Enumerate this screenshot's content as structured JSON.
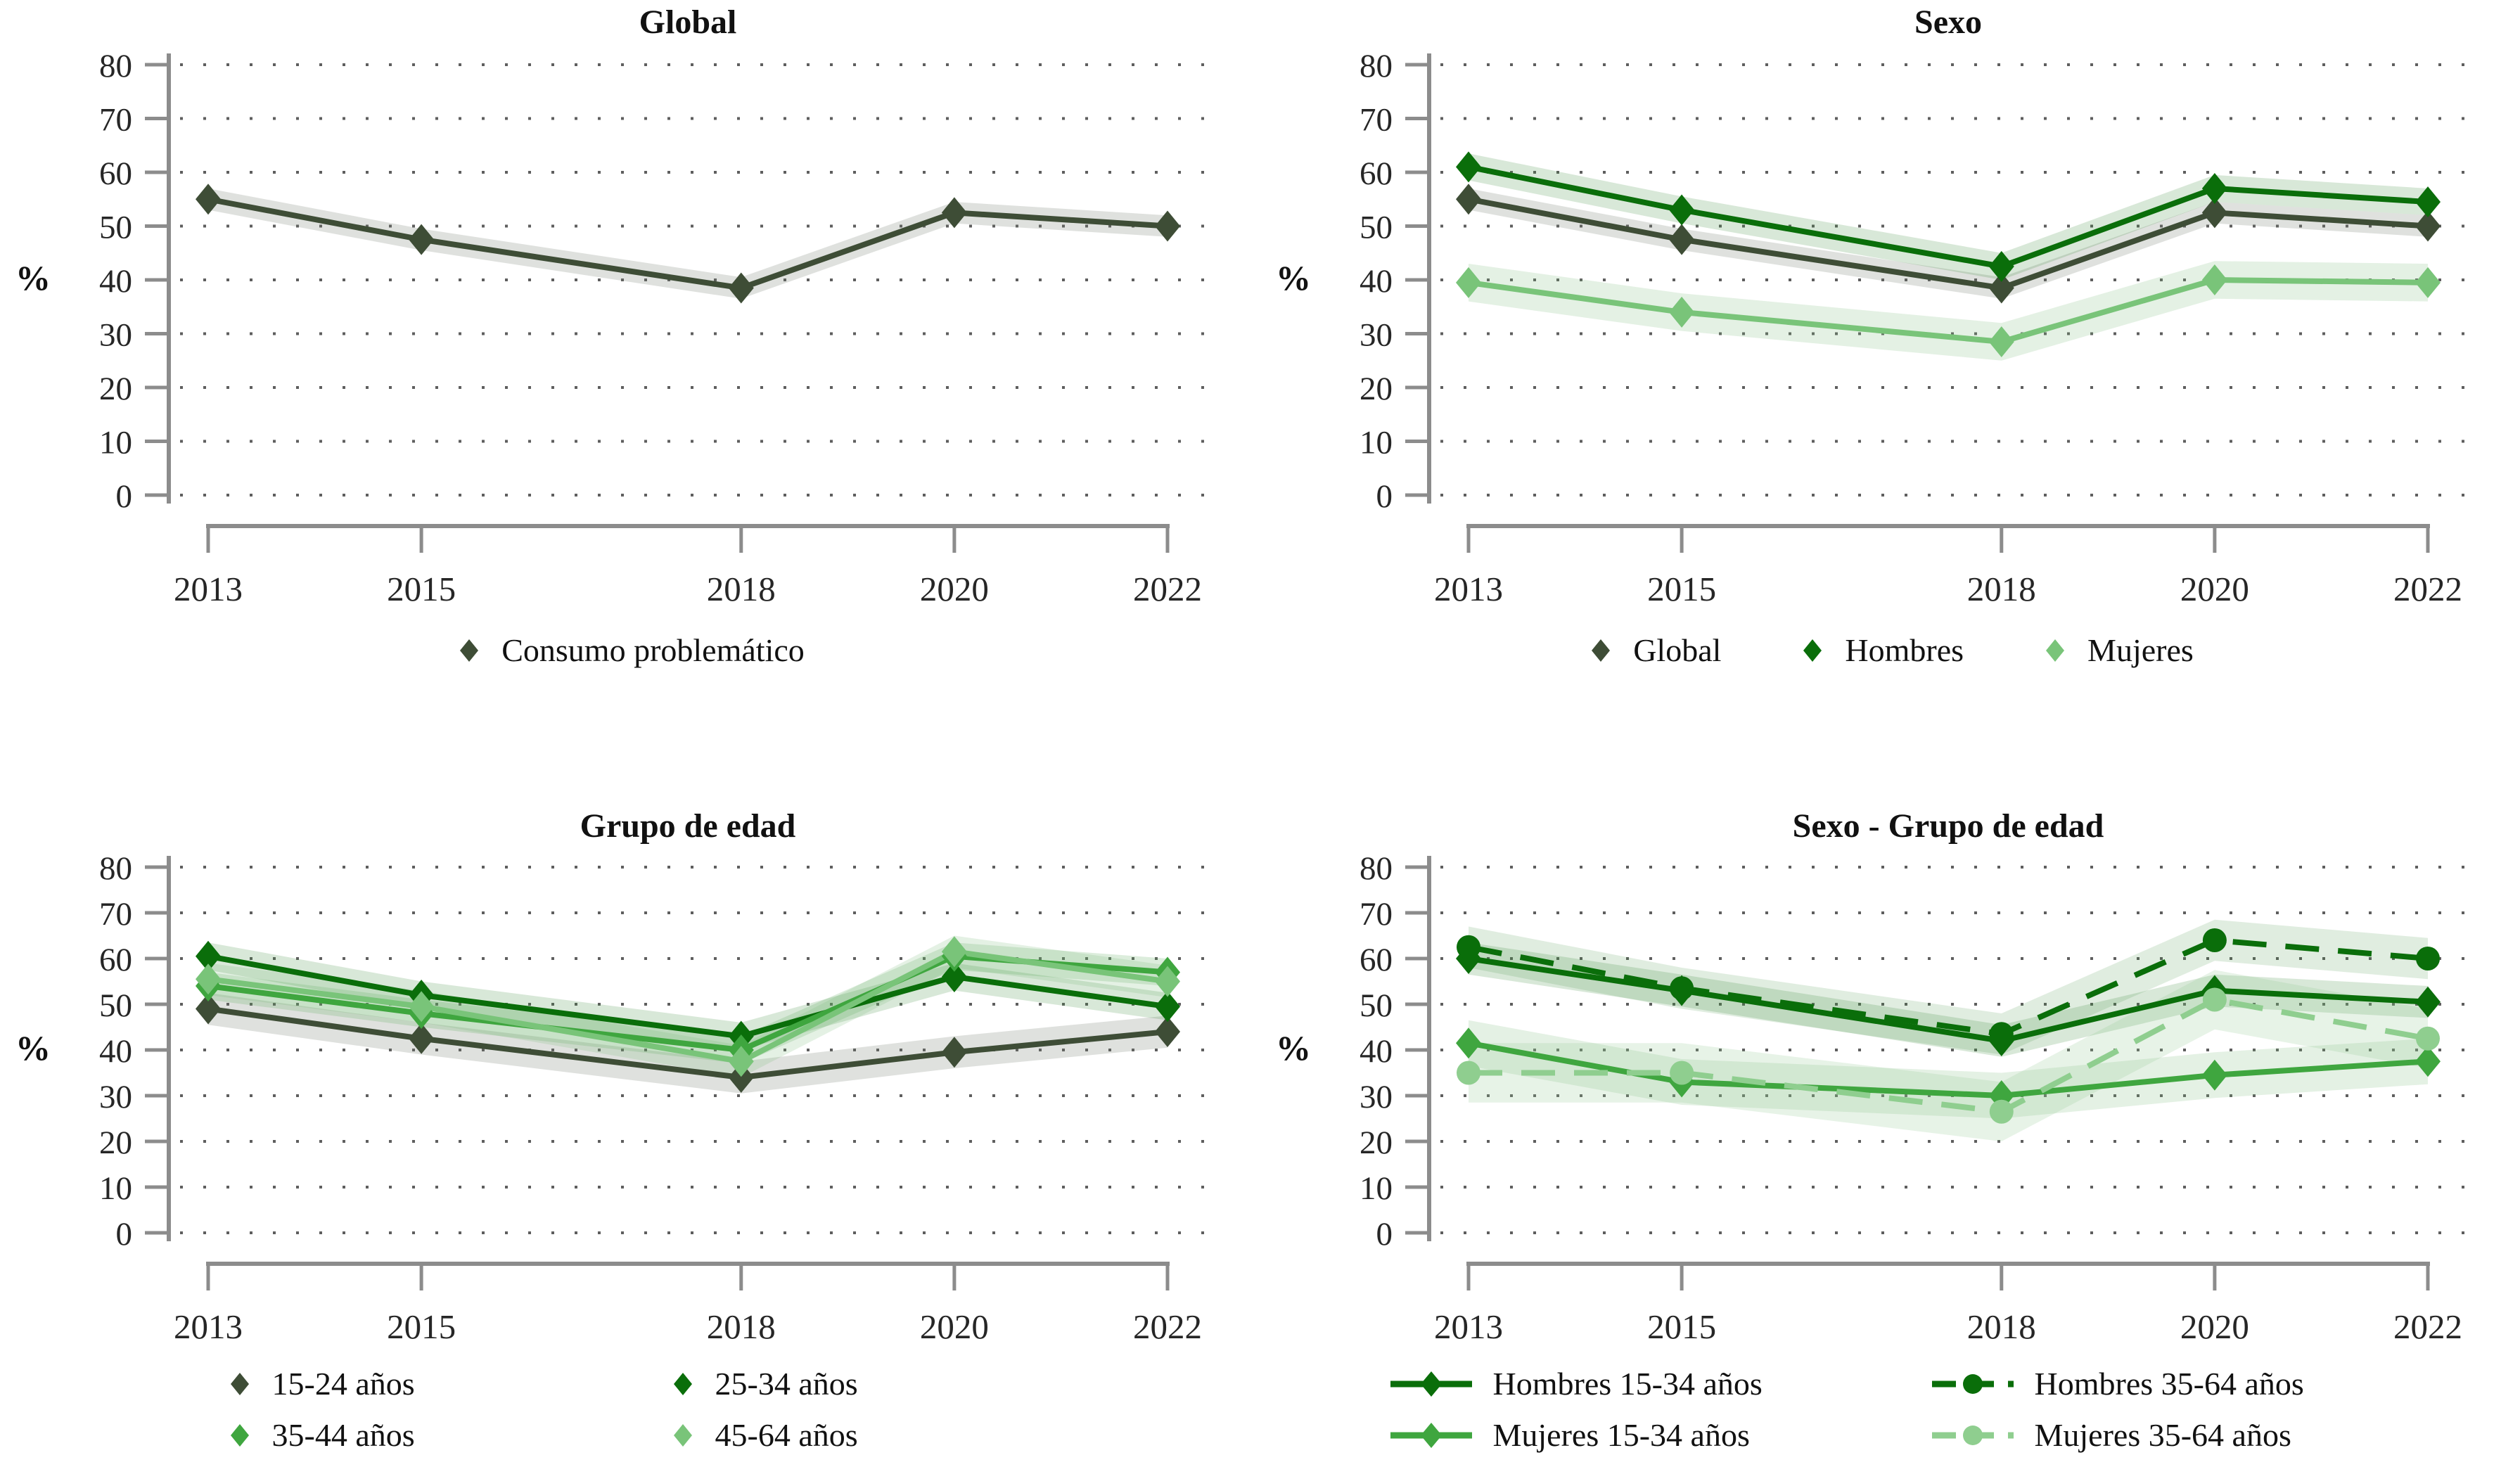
{
  "figure": {
    "background": "#ffffff"
  },
  "axes": {
    "ylabel": "%",
    "y_ticks": [
      0,
      10,
      20,
      30,
      40,
      50,
      60,
      70,
      80
    ],
    "y_range": [
      0,
      80
    ],
    "x_ticks": [
      2013,
      2015,
      2018,
      2020,
      2022
    ],
    "x_range": [
      2013,
      2022
    ],
    "grid": "dotted-horizontal"
  },
  "palette": {
    "darkest_green": "#3e4d36",
    "dark_green": "#0a6e0a",
    "medium_green": "#3fa63f",
    "light_green": "#79c479",
    "lighter_green": "#8fce8f",
    "axis_gray": "#8c8c8c"
  },
  "chart_data": [
    {
      "type": "line",
      "title": "Global",
      "ylabel": "%",
      "ylim": [
        0,
        80
      ],
      "x": [
        2013,
        2015,
        2018,
        2020,
        2022
      ],
      "legend_style": "marker",
      "legend_rows": [
        [
          "Consumo problemático"
        ]
      ],
      "series": [
        {
          "name": "Consumo problemático",
          "color": "#3e4d36",
          "marker": "diamond",
          "dash": "solid",
          "values": [
            55,
            47.5,
            38.5,
            52.5,
            50
          ],
          "band": 2,
          "band_color": "rgba(110,120,105,0.22)"
        }
      ]
    },
    {
      "type": "line",
      "title": "Sexo",
      "ylabel": "%",
      "ylim": [
        0,
        80
      ],
      "x": [
        2013,
        2015,
        2018,
        2020,
        2022
      ],
      "legend_style": "marker",
      "legend_rows": [
        [
          "Global",
          "Hombres",
          "Mujeres"
        ]
      ],
      "series": [
        {
          "name": "Global",
          "color": "#3e4d36",
          "marker": "diamond",
          "dash": "solid",
          "values": [
            55,
            47.5,
            38.5,
            52.5,
            50
          ],
          "band": 2,
          "band_color": "rgba(110,120,105,0.22)"
        },
        {
          "name": "Hombres",
          "color": "#0a6e0a",
          "marker": "diamond",
          "dash": "solid",
          "values": [
            61,
            53,
            42.5,
            57,
            54.5
          ],
          "band": 2.5,
          "band_color": "rgba(60,140,60,0.20)"
        },
        {
          "name": "Mujeres",
          "color": "#79c479",
          "marker": "diamond",
          "dash": "solid",
          "values": [
            39.5,
            34,
            28.5,
            40,
            39.5
          ],
          "band": 3.5,
          "band_color": "rgba(120,185,120,0.20)"
        }
      ]
    },
    {
      "type": "line",
      "title": "Grupo de edad",
      "ylabel": "%",
      "ylim": [
        0,
        80
      ],
      "x": [
        2013,
        2015,
        2018,
        2020,
        2022
      ],
      "legend_style": "marker",
      "legend_rows": [
        [
          "15-24 años",
          "25-34 años"
        ],
        [
          "35-44 años",
          "45-64 años"
        ]
      ],
      "series": [
        {
          "name": "15-24 años",
          "color": "#3e4d36",
          "marker": "diamond",
          "dash": "solid",
          "values": [
            49,
            42.5,
            34,
            39.5,
            44
          ],
          "band": 3.5,
          "band_color": "rgba(110,120,105,0.22)"
        },
        {
          "name": "25-34 años",
          "color": "#0a6e0a",
          "marker": "diamond",
          "dash": "solid",
          "values": [
            60.5,
            52,
            43,
            56,
            49.5
          ],
          "band": 3,
          "band_color": "rgba(60,140,60,0.20)"
        },
        {
          "name": "35-44 años",
          "color": "#3fa63f",
          "marker": "diamond",
          "dash": "solid",
          "values": [
            54,
            48,
            40,
            60.5,
            57
          ],
          "band": 3,
          "band_color": "rgba(80,165,80,0.20)"
        },
        {
          "name": "45-64 años",
          "color": "#79c479",
          "marker": "diamond",
          "dash": "solid",
          "values": [
            55.5,
            49.5,
            37.5,
            61.5,
            55
          ],
          "band": 3.5,
          "band_color": "rgba(120,185,120,0.20)"
        }
      ]
    },
    {
      "type": "line",
      "title": "Sexo - Grupo de edad",
      "ylabel": "%",
      "ylim": [
        0,
        80
      ],
      "x": [
        2013,
        2015,
        2018,
        2020,
        2022
      ],
      "legend_style": "line-marker",
      "legend_rows": [
        [
          "Hombres 15-34 años",
          "Hombres 35-64 años"
        ],
        [
          "Mujeres 15-34 años",
          "Mujeres 35-64 años"
        ]
      ],
      "series": [
        {
          "name": "Hombres 15-34 años",
          "color": "#0a6e0a",
          "marker": "diamond",
          "dash": "solid",
          "values": [
            60,
            53,
            42,
            53,
            50.5
          ],
          "band": 3.5,
          "band_color": "rgba(60,140,60,0.20)"
        },
        {
          "name": "Hombres 35-64 años",
          "color": "#0a6e0a",
          "marker": "circle",
          "dash": "dashed",
          "values": [
            62.5,
            53.5,
            43.5,
            64,
            60
          ],
          "band": 4.5,
          "band_color": "rgba(60,140,60,0.16)"
        },
        {
          "name": "Mujeres 15-34 años",
          "color": "#3fa63f",
          "marker": "diamond",
          "dash": "solid",
          "values": [
            41.5,
            33,
            30,
            34.5,
            37.5
          ],
          "band": 5,
          "band_color": "rgba(120,185,120,0.20)"
        },
        {
          "name": "Mujeres 35-64 años",
          "color": "#8fce8f",
          "marker": "circle",
          "dash": "dashed",
          "values": [
            35,
            35,
            26.5,
            51,
            42.5
          ],
          "band": 6.5,
          "band_color": "rgba(145,200,145,0.22)"
        }
      ]
    }
  ]
}
